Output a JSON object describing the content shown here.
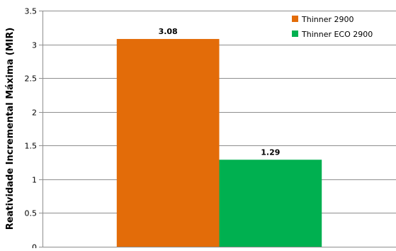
{
  "chart_data": {
    "type": "bar",
    "title": "",
    "xlabel": "",
    "ylabel": "Reatividade Incremental Máxima (MIR)",
    "ylim": [
      0,
      3.5
    ],
    "yticks": [
      0,
      0.5,
      1,
      1.5,
      2,
      2.5,
      3,
      3.5
    ],
    "ytick_labels": [
      "0",
      "0.5",
      "1",
      "1.5",
      "2",
      "2.5",
      "3",
      "3.5"
    ],
    "grid": true,
    "legend_position": "top-right",
    "categories": [
      ""
    ],
    "series": [
      {
        "name": "Thinner 2900",
        "values": [
          3.08
        ],
        "value_labels": [
          "3.08"
        ],
        "color": "#e36c09"
      },
      {
        "name": "Thinner ECO 2900",
        "values": [
          1.29
        ],
        "value_labels": [
          "1.29"
        ],
        "color": "#00b050"
      }
    ],
    "colors": {
      "grid": "#8e8e8e",
      "axis": "#8e8e8e",
      "text": "#000000"
    }
  }
}
